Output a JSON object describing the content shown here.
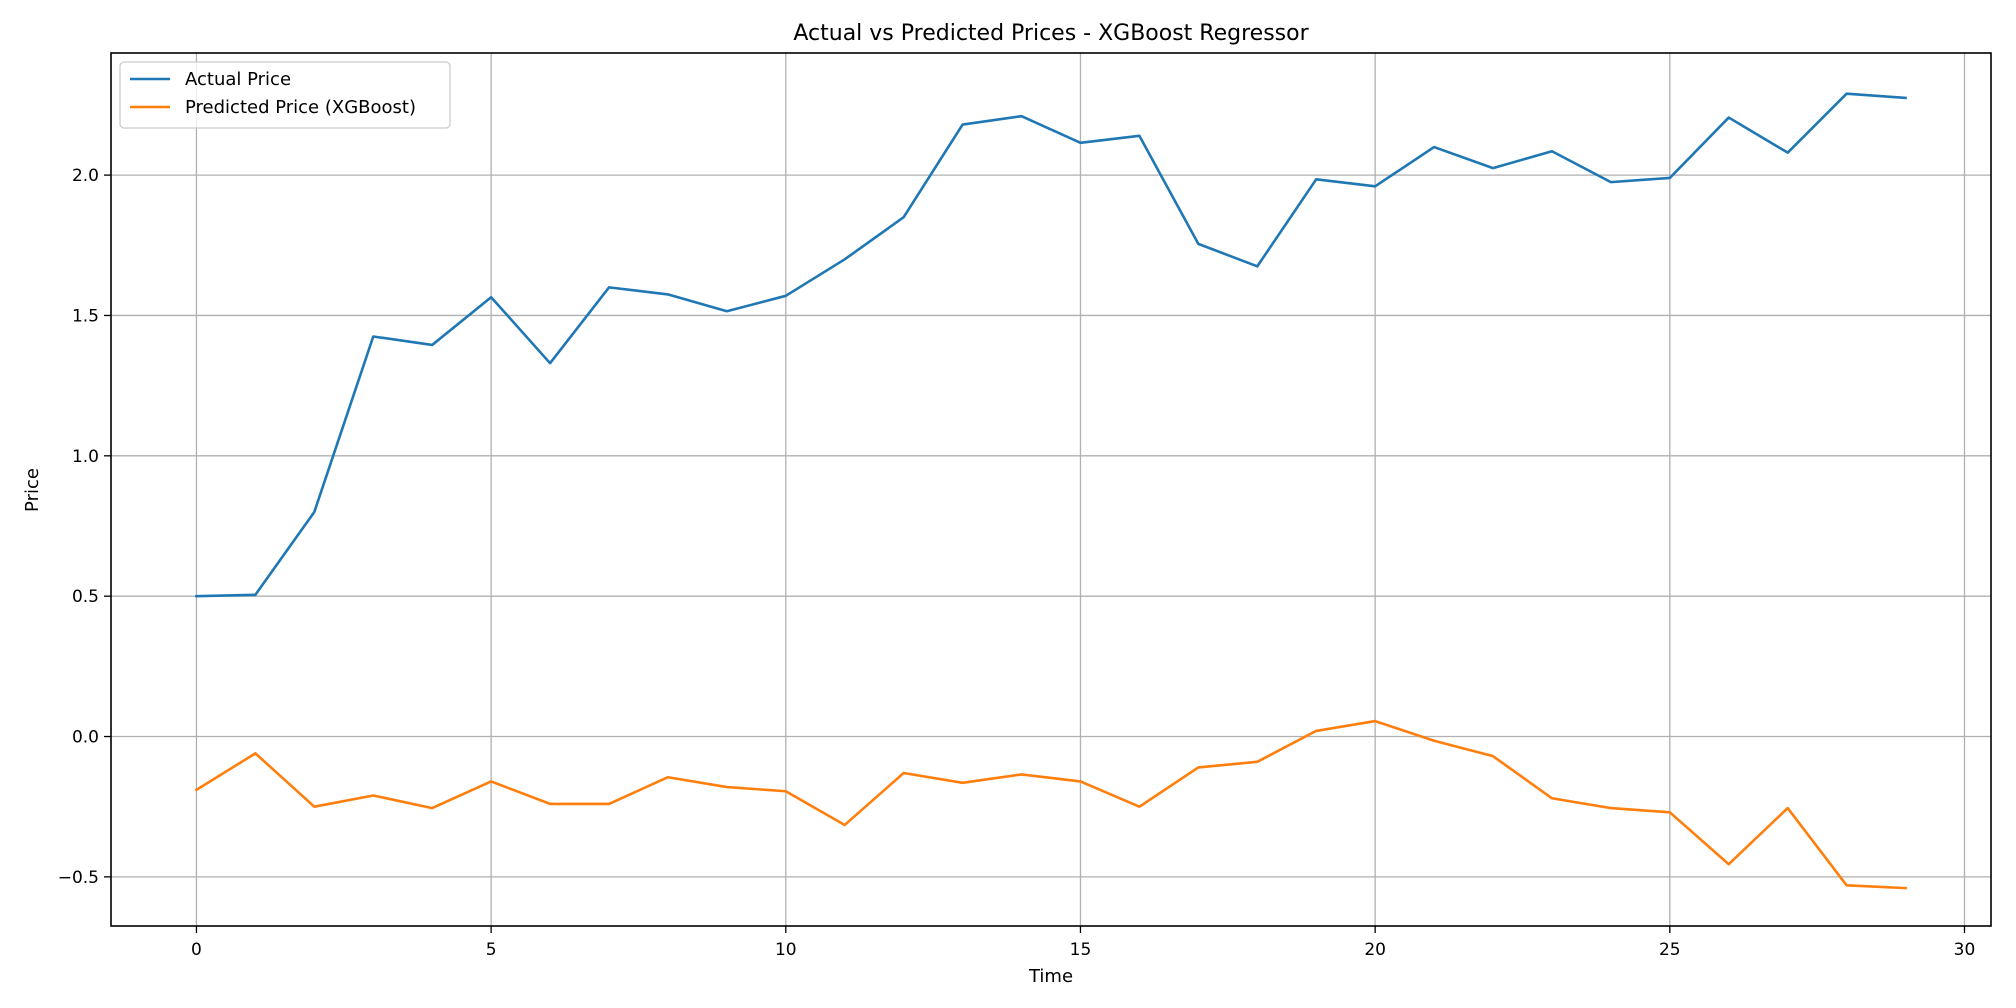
{
  "chart_data": {
    "type": "line",
    "title": "Actual vs Predicted Prices - XGBoost Regressor",
    "xlabel": "Time",
    "ylabel": "Price",
    "xlim": [
      -1.45,
      30.45
    ],
    "ylim": [
      -0.675,
      2.435
    ],
    "xticks": [
      0,
      5,
      10,
      15,
      20,
      25,
      30
    ],
    "yticks": [
      -0.5,
      0.0,
      0.5,
      1.0,
      1.5,
      2.0
    ],
    "ytick_labels": [
      "−0.5",
      "0.0",
      "0.5",
      "1.0",
      "1.5",
      "2.0"
    ],
    "grid": true,
    "legend_position": "top-left",
    "x": [
      0,
      1,
      2,
      3,
      4,
      5,
      6,
      7,
      8,
      9,
      10,
      11,
      12,
      13,
      14,
      15,
      16,
      17,
      18,
      19,
      20,
      21,
      22,
      23,
      24,
      25,
      26,
      27,
      28,
      29
    ],
    "series": [
      {
        "name": "Actual Price",
        "color": "#1f77b4",
        "values": [
          0.5,
          0.505,
          0.8,
          1.425,
          1.395,
          1.565,
          1.33,
          1.6,
          1.575,
          1.515,
          1.57,
          1.7,
          1.85,
          2.18,
          2.21,
          2.115,
          2.14,
          1.755,
          1.675,
          1.985,
          1.96,
          2.1,
          2.025,
          2.085,
          1.975,
          1.99,
          2.205,
          2.08,
          2.29,
          2.275
        ]
      },
      {
        "name": "Predicted Price (XGBoost)",
        "color": "#ff7f0e",
        "values": [
          -0.19,
          -0.06,
          -0.25,
          -0.21,
          -0.255,
          -0.16,
          -0.24,
          -0.24,
          -0.145,
          -0.18,
          -0.195,
          -0.315,
          -0.13,
          -0.165,
          -0.135,
          -0.16,
          -0.25,
          -0.11,
          -0.09,
          0.02,
          0.055,
          -0.015,
          -0.07,
          -0.22,
          -0.255,
          -0.27,
          -0.455,
          -0.255,
          -0.53,
          -0.54
        ]
      }
    ]
  }
}
